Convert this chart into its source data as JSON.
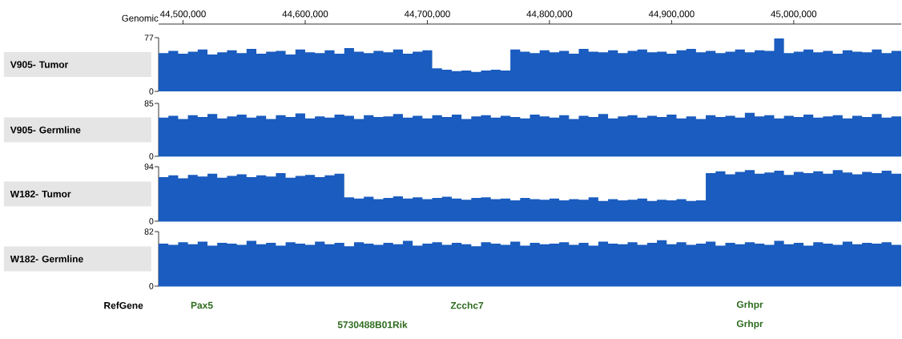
{
  "chart_data": [
    {
      "type": "area",
      "ylabel": "V905- Tumor",
      "xlabel": "Genomic",
      "color": "#1a5cbf",
      "xlim": [
        44480000,
        45088000
      ],
      "xticks": [
        {
          "value": 44500000,
          "label": "44,500,000"
        },
        {
          "value": 44600000,
          "label": "44,600,000"
        },
        {
          "value": 44700000,
          "label": "44,700,000"
        },
        {
          "value": 44800000,
          "label": "44,800,000"
        },
        {
          "value": 44900000,
          "label": "44,900,000"
        },
        {
          "value": 45000000,
          "label": "45,000,000"
        }
      ],
      "ylim": [
        0,
        77
      ],
      "yticks": [
        0,
        77
      ],
      "x": [
        44480000,
        44488000,
        44496000,
        44504000,
        44512000,
        44520000,
        44528000,
        44536000,
        44544000,
        44552000,
        44560000,
        44568000,
        44576000,
        44584000,
        44592000,
        44600000,
        44608000,
        44616000,
        44624000,
        44632000,
        44640000,
        44648000,
        44656000,
        44664000,
        44672000,
        44680000,
        44688000,
        44696000,
        44704000,
        44712000,
        44720000,
        44728000,
        44736000,
        44744000,
        44752000,
        44760000,
        44768000,
        44776000,
        44784000,
        44792000,
        44800000,
        44808000,
        44816000,
        44824000,
        44832000,
        44840000,
        44848000,
        44856000,
        44864000,
        44872000,
        44880000,
        44888000,
        44896000,
        44904000,
        44912000,
        44920000,
        44928000,
        44936000,
        44944000,
        44952000,
        44960000,
        44968000,
        44976000,
        44984000,
        44992000,
        45000000,
        45008000,
        45016000,
        45024000,
        45032000,
        45040000,
        45048000,
        45056000,
        45064000,
        45072000,
        45080000,
        45088000
      ],
      "values": [
        55,
        58,
        54,
        57,
        60,
        53,
        56,
        59,
        55,
        61,
        54,
        57,
        58,
        53,
        60,
        56,
        55,
        59,
        54,
        62,
        57,
        55,
        58,
        56,
        60,
        54,
        57,
        59,
        33,
        31,
        29,
        30,
        28,
        30,
        31,
        30,
        60,
        57,
        55,
        59,
        56,
        58,
        54,
        61,
        57,
        56,
        59,
        55,
        58,
        60,
        56,
        57,
        54,
        59,
        61,
        56,
        58,
        55,
        57,
        60,
        56,
        59,
        58,
        76,
        55,
        57,
        60,
        56,
        58,
        54,
        59,
        57,
        56,
        60,
        55,
        58,
        57
      ]
    },
    {
      "type": "area",
      "ylabel": "V905- Germline",
      "color": "#1a5cbf",
      "xlim": [
        44480000,
        45088000
      ],
      "tick_labels": "y",
      "ylim": [
        0,
        85
      ],
      "yticks": [
        0,
        85
      ],
      "x": [
        44480000,
        44488000,
        44496000,
        44504000,
        44512000,
        44520000,
        44528000,
        44536000,
        44544000,
        44552000,
        44560000,
        44568000,
        44576000,
        44584000,
        44592000,
        44600000,
        44608000,
        44616000,
        44624000,
        44632000,
        44640000,
        44648000,
        44656000,
        44664000,
        44672000,
        44680000,
        44688000,
        44696000,
        44704000,
        44712000,
        44720000,
        44728000,
        44736000,
        44744000,
        44752000,
        44760000,
        44768000,
        44776000,
        44784000,
        44792000,
        44800000,
        44808000,
        44816000,
        44824000,
        44832000,
        44840000,
        44848000,
        44856000,
        44864000,
        44872000,
        44880000,
        44888000,
        44896000,
        44904000,
        44912000,
        44920000,
        44928000,
        44936000,
        44944000,
        44952000,
        44960000,
        44968000,
        44976000,
        44984000,
        44992000,
        45000000,
        45008000,
        45016000,
        45024000,
        45032000,
        45040000,
        45048000,
        45056000,
        45064000,
        45072000,
        45080000,
        45088000
      ],
      "values": [
        62,
        65,
        60,
        66,
        63,
        68,
        61,
        64,
        67,
        62,
        65,
        60,
        66,
        63,
        69,
        61,
        64,
        62,
        67,
        65,
        60,
        66,
        63,
        64,
        68,
        62,
        65,
        61,
        66,
        63,
        67,
        60,
        64,
        66,
        62,
        65,
        63,
        61,
        67,
        64,
        62,
        66,
        60,
        65,
        63,
        68,
        61,
        64,
        66,
        62,
        65,
        63,
        67,
        61,
        64,
        60,
        66,
        63,
        65,
        62,
        70,
        64,
        66,
        61,
        65,
        63,
        67,
        62,
        64,
        66,
        61,
        65,
        63,
        68,
        62,
        64,
        65
      ]
    },
    {
      "type": "area",
      "ylabel": "W182- Tumor",
      "color": "#1a5cbf",
      "xlim": [
        44480000,
        45088000
      ],
      "tick_labels": "y",
      "ylim": [
        0,
        94
      ],
      "yticks": [
        0,
        94
      ],
      "x": [
        44480000,
        44488000,
        44496000,
        44504000,
        44512000,
        44520000,
        44528000,
        44536000,
        44544000,
        44552000,
        44560000,
        44568000,
        44576000,
        44584000,
        44592000,
        44600000,
        44608000,
        44616000,
        44624000,
        44632000,
        44640000,
        44648000,
        44656000,
        44664000,
        44672000,
        44680000,
        44688000,
        44696000,
        44704000,
        44712000,
        44720000,
        44728000,
        44736000,
        44744000,
        44752000,
        44760000,
        44768000,
        44776000,
        44784000,
        44792000,
        44800000,
        44808000,
        44816000,
        44824000,
        44832000,
        44840000,
        44848000,
        44856000,
        44864000,
        44872000,
        44880000,
        44888000,
        44896000,
        44904000,
        44912000,
        44920000,
        44928000,
        44936000,
        44944000,
        44952000,
        44960000,
        44968000,
        44976000,
        44984000,
        44992000,
        45000000,
        45008000,
        45016000,
        45024000,
        45032000,
        45040000,
        45048000,
        45056000,
        45064000,
        45072000,
        45080000,
        45088000
      ],
      "values": [
        76,
        79,
        74,
        80,
        77,
        82,
        75,
        78,
        81,
        76,
        79,
        77,
        83,
        75,
        78,
        80,
        76,
        79,
        82,
        41,
        39,
        42,
        38,
        40,
        43,
        39,
        41,
        38,
        40,
        42,
        39,
        37,
        40,
        41,
        38,
        39,
        36,
        40,
        38,
        37,
        39,
        36,
        38,
        37,
        41,
        35,
        38,
        36,
        37,
        39,
        35,
        37,
        36,
        38,
        35,
        36,
        83,
        86,
        81,
        85,
        88,
        82,
        84,
        87,
        80,
        85,
        83,
        86,
        82,
        88,
        84,
        81,
        85,
        83,
        87,
        82,
        84
      ]
    },
    {
      "type": "area",
      "ylabel": "W182- Germline",
      "color": "#1a5cbf",
      "xlim": [
        44480000,
        45088000
      ],
      "tick_labels": "y",
      "ylim": [
        0,
        82
      ],
      "yticks": [
        0,
        82
      ],
      "x": [
        44480000,
        44488000,
        44496000,
        44504000,
        44512000,
        44520000,
        44528000,
        44536000,
        44544000,
        44552000,
        44560000,
        44568000,
        44576000,
        44584000,
        44592000,
        44600000,
        44608000,
        44616000,
        44624000,
        44632000,
        44640000,
        44648000,
        44656000,
        44664000,
        44672000,
        44680000,
        44688000,
        44696000,
        44704000,
        44712000,
        44720000,
        44728000,
        44736000,
        44744000,
        44752000,
        44760000,
        44768000,
        44776000,
        44784000,
        44792000,
        44800000,
        44808000,
        44816000,
        44824000,
        44832000,
        44840000,
        44848000,
        44856000,
        44864000,
        44872000,
        44880000,
        44888000,
        44896000,
        44904000,
        44912000,
        44920000,
        44928000,
        44936000,
        44944000,
        44952000,
        44960000,
        44968000,
        44976000,
        44984000,
        44992000,
        45000000,
        45008000,
        45016000,
        45024000,
        45032000,
        45040000,
        45048000,
        45056000,
        45064000,
        45072000,
        45080000,
        45088000
      ],
      "values": [
        64,
        62,
        66,
        63,
        67,
        61,
        65,
        64,
        62,
        68,
        63,
        65,
        61,
        66,
        64,
        62,
        67,
        63,
        65,
        60,
        66,
        64,
        62,
        65,
        63,
        68,
        61,
        64,
        66,
        62,
        65,
        63,
        60,
        66,
        64,
        62,
        67,
        61,
        65,
        63,
        64,
        66,
        62,
        65,
        61,
        67,
        64,
        63,
        66,
        62,
        65,
        69,
        63,
        66,
        62,
        64,
        67,
        61,
        65,
        63,
        66,
        64,
        62,
        68,
        63,
        65,
        61,
        66,
        64,
        62,
        67,
        63,
        65,
        64,
        66,
        62,
        65
      ]
    },
    {
      "type": "other",
      "ylabel": "RefGene",
      "color": "#2e6b1f",
      "annotations": [
        "Pax5",
        "5730488B01Rik",
        "Zcchc7",
        "Grhpr",
        "Grhpr"
      ]
    }
  ]
}
